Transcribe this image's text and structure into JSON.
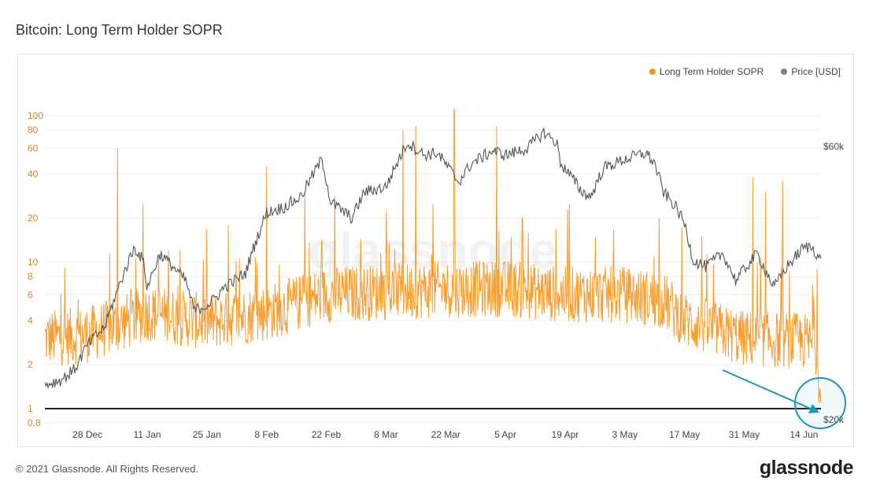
{
  "title": "Bitcoin: Long Term Holder SOPR",
  "footer": "© 2021 Glassnode. All Rights Reserved.",
  "logo": "glassnode",
  "watermark": "glassnode",
  "chart_data": {
    "type": "line",
    "title": "Bitcoin: Long Term Holder SOPR",
    "legend": [
      {
        "name": "Long Term Holder SOPR",
        "color": "#f7931a"
      },
      {
        "name": "Price [USD]",
        "color": "#808080"
      }
    ],
    "legend_position": "top-right",
    "x_range": [
      "2020-12-18",
      "2021-06-18"
    ],
    "x_ticks": [
      "28. Dec",
      "11. Jan",
      "25. Jan",
      "8. Feb",
      "22. Feb",
      "8. Mar",
      "22. Mar",
      "5. Apr",
      "19. Apr",
      "3. May",
      "17. May",
      "31. May",
      "14. Jun"
    ],
    "y_left": {
      "scale": "log",
      "range": [
        0.75,
        110
      ],
      "ticks": [
        "0.8",
        "1",
        "2",
        "4",
        "6",
        "8",
        "10",
        "20",
        "40",
        "60",
        "80",
        "100"
      ],
      "color": "#c8883a"
    },
    "y_right": {
      "scale": "log",
      "ticks": [
        "$20k",
        "$60k"
      ]
    },
    "reference_line": {
      "value": 1,
      "color": "#222222"
    },
    "series": [
      {
        "name": "Long Term Holder SOPR",
        "color": "#f7931a",
        "base": [
          [
            "2020-12-18",
            3
          ],
          [
            "2020-12-28",
            3.2
          ],
          [
            "2021-01-05",
            3.8
          ],
          [
            "2021-01-11",
            4.5
          ],
          [
            "2021-01-25",
            3.9
          ],
          [
            "2021-02-08",
            4.5
          ],
          [
            "2021-02-22",
            6
          ],
          [
            "2021-03-08",
            6.3
          ],
          [
            "2021-03-22",
            6.5
          ],
          [
            "2021-04-05",
            6.6
          ],
          [
            "2021-04-19",
            6
          ],
          [
            "2021-05-03",
            6
          ],
          [
            "2021-05-12",
            5.5
          ],
          [
            "2021-05-17",
            4
          ],
          [
            "2021-05-31",
            3
          ],
          [
            "2021-06-14",
            2.9
          ],
          [
            "2021-06-17",
            2.6
          ],
          [
            "2021-06-18",
            1.1
          ]
        ],
        "spikes": [
          [
            "2021-01-04",
            60
          ],
          [
            "2021-01-10",
            25
          ],
          [
            "2021-01-16",
            12
          ],
          [
            "2021-01-30",
            18
          ],
          [
            "2021-02-08",
            45
          ],
          [
            "2021-02-17",
            30
          ],
          [
            "2021-02-24",
            28
          ],
          [
            "2021-03-12",
            80
          ],
          [
            "2021-03-15",
            85
          ],
          [
            "2021-03-19",
            25
          ],
          [
            "2021-03-24",
            110
          ],
          [
            "2021-04-03",
            85
          ],
          [
            "2021-04-09",
            20
          ],
          [
            "2021-04-20",
            25
          ],
          [
            "2021-05-11",
            20
          ],
          [
            "2021-05-21",
            15
          ],
          [
            "2021-06-02",
            38
          ],
          [
            "2021-06-05",
            30
          ],
          [
            "2021-06-09",
            36
          ],
          [
            "2021-06-16",
            7
          ]
        ]
      },
      {
        "name": "Price [USD]",
        "color": "#808080",
        "points": [
          [
            "2020-12-18",
            23000
          ],
          [
            "2020-12-22",
            23500
          ],
          [
            "2020-12-25",
            24500
          ],
          [
            "2020-12-28",
            27000
          ],
          [
            "2021-01-01",
            29000
          ],
          [
            "2021-01-03",
            32000
          ],
          [
            "2021-01-08",
            40000
          ],
          [
            "2021-01-10",
            38000
          ],
          [
            "2021-01-11",
            34000
          ],
          [
            "2021-01-14",
            39000
          ],
          [
            "2021-01-20",
            35000
          ],
          [
            "2021-01-22",
            31000
          ],
          [
            "2021-01-26",
            32000
          ],
          [
            "2021-01-29",
            34000
          ],
          [
            "2021-02-03",
            36000
          ],
          [
            "2021-02-08",
            46000
          ],
          [
            "2021-02-12",
            47000
          ],
          [
            "2021-02-16",
            49000
          ],
          [
            "2021-02-21",
            57000
          ],
          [
            "2021-02-23",
            48000
          ],
          [
            "2021-02-28",
            45000
          ],
          [
            "2021-03-03",
            50000
          ],
          [
            "2021-03-08",
            51000
          ],
          [
            "2021-03-13",
            61000
          ],
          [
            "2021-03-17",
            58000
          ],
          [
            "2021-03-20",
            58500
          ],
          [
            "2021-03-25",
            52000
          ],
          [
            "2021-03-28",
            56000
          ],
          [
            "2021-04-02",
            59000
          ],
          [
            "2021-04-05",
            58000
          ],
          [
            "2021-04-10",
            59500
          ],
          [
            "2021-04-14",
            63500
          ],
          [
            "2021-04-17",
            61000
          ],
          [
            "2021-04-18",
            56000
          ],
          [
            "2021-04-23",
            50000
          ],
          [
            "2021-04-25",
            49000
          ],
          [
            "2021-04-28",
            55000
          ],
          [
            "2021-05-03",
            57000
          ],
          [
            "2021-05-08",
            58500
          ],
          [
            "2021-05-10",
            56000
          ],
          [
            "2021-05-12",
            50000
          ],
          [
            "2021-05-15",
            47000
          ],
          [
            "2021-05-17",
            44000
          ],
          [
            "2021-05-19",
            38000
          ],
          [
            "2021-05-22",
            37000
          ],
          [
            "2021-05-26",
            39000
          ],
          [
            "2021-05-29",
            35000
          ],
          [
            "2021-06-03",
            39000
          ],
          [
            "2021-06-07",
            34000
          ],
          [
            "2021-06-10",
            37000
          ],
          [
            "2021-06-14",
            40000
          ],
          [
            "2021-06-16",
            40000
          ],
          [
            "2021-06-18",
            38000
          ]
        ]
      }
    ],
    "annotation": {
      "type": "arrow-and-circle",
      "color": "#1f97b0",
      "target": "SOPR ≈ 1 on 2021-06-18"
    }
  }
}
